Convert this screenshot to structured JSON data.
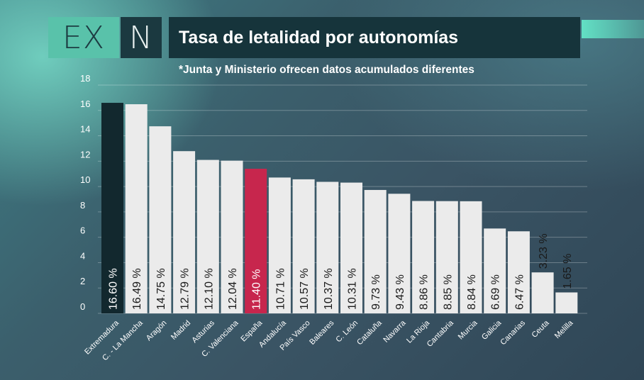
{
  "logo": {
    "left": "EX",
    "right": "N"
  },
  "header": {
    "title": "Tasa de letalidad por autonomías"
  },
  "subtitle": "*Junta y Ministerio ofrecen datos acumulados diferentes",
  "colors": {
    "default_bar": "#ebebeb",
    "highlight_dark": "#12282e",
    "highlight_red": "#c7264d",
    "brand_teal": "#59c2aa"
  },
  "chart_data": {
    "type": "bar",
    "title": "Tasa de letalidad por autonomías",
    "subtitle": "*Junta y Ministerio ofrecen datos acumulados diferentes",
    "categories": [
      "Extremadura",
      "C. - La Mancha",
      "Aragón",
      "Madrid",
      "Asturias",
      "C. Valenciana",
      "España",
      "Andalucía",
      "País Vasco",
      "Baleares",
      "C. León",
      "Cataluña",
      "Navarra",
      "La Rioja",
      "Cantabria",
      "Murcia",
      "Galicia",
      "Canarias",
      "Ceuta",
      "Melilla"
    ],
    "values": [
      16.6,
      16.49,
      14.75,
      12.79,
      12.1,
      12.04,
      11.4,
      10.71,
      10.57,
      10.37,
      10.31,
      9.73,
      9.43,
      8.86,
      8.85,
      8.84,
      6.69,
      6.47,
      3.23,
      1.65
    ],
    "value_labels": [
      "16.60 %",
      "16.49 %",
      "14.75 %",
      "12.79 %",
      "12.10 %",
      "12.04 %",
      "11.40 %",
      "10.71 %",
      "10.57 %",
      "10.37 %",
      "10.31 %",
      "9.73 %",
      "9.43 %",
      "8.86 %",
      "8.85 %",
      "8.84 %",
      "6.69 %",
      "6.47 %",
      "3.23 %",
      "1.65 %"
    ],
    "highlight": {
      "Extremadura": "dark",
      "España": "red"
    },
    "yticks": [
      0,
      2,
      4,
      6,
      8,
      10,
      12,
      14,
      16,
      18
    ],
    "ylim": [
      0,
      18
    ],
    "grid": true,
    "xlabel": "",
    "ylabel": ""
  }
}
